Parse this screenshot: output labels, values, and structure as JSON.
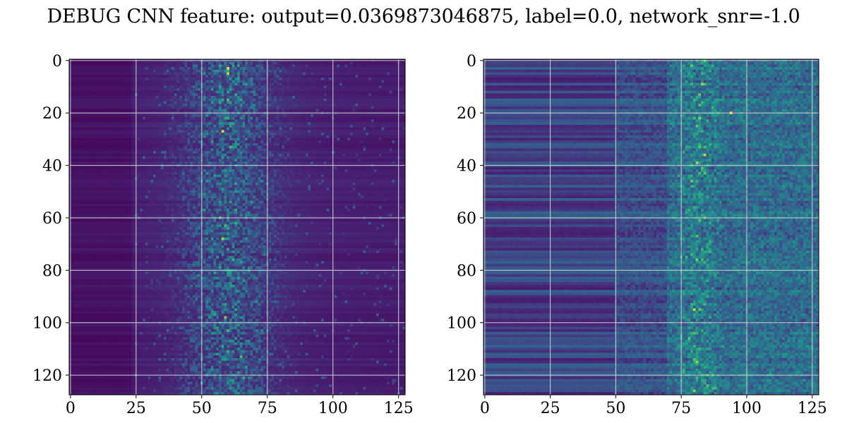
{
  "title": "DEBUG CNN feature: output=0.0369873046875, label=0.0, network_snr=-1.0",
  "chart_data": [
    {
      "type": "heatmap",
      "colormap": "viridis",
      "grid": true,
      "xlim": [
        -0.5,
        127.5
      ],
      "ylim": [
        127.5,
        -0.5
      ],
      "xticks": [
        0,
        25,
        50,
        75,
        100,
        125
      ],
      "yticks": [
        0,
        20,
        40,
        60,
        80,
        100,
        120
      ],
      "xtick_labels": [
        "0",
        "25",
        "50",
        "75",
        "100",
        "125"
      ],
      "ytick_labels": [
        "0",
        "20",
        "40",
        "60",
        "80",
        "100",
        "120"
      ],
      "rows": 128,
      "cols": 128,
      "features": [
        {
          "x": 60,
          "y": 3,
          "value": 1.0
        },
        {
          "x": 60,
          "y": 5,
          "value": 0.9
        },
        {
          "x": 58,
          "y": 27,
          "value": 0.95
        },
        {
          "x": 61,
          "y": 33,
          "value": 0.7
        },
        {
          "x": 59,
          "y": 63,
          "value": 0.7
        },
        {
          "x": 58,
          "y": 68,
          "value": 0.85
        },
        {
          "x": 59,
          "y": 98,
          "value": 0.8
        },
        {
          "x": 65,
          "y": 113,
          "value": 0.7
        }
      ]
    },
    {
      "type": "heatmap",
      "colormap": "viridis",
      "grid": true,
      "xlim": [
        -0.5,
        127.5
      ],
      "ylim": [
        127.5,
        -0.5
      ],
      "xticks": [
        0,
        25,
        50,
        75,
        100,
        125
      ],
      "yticks": [
        0,
        20,
        40,
        60,
        80,
        100,
        120
      ],
      "xtick_labels": [
        "0",
        "25",
        "50",
        "75",
        "100",
        "125"
      ],
      "ytick_labels": [
        "0",
        "20",
        "40",
        "60",
        "80",
        "100",
        "120"
      ],
      "rows": 128,
      "cols": 128,
      "features": [
        {
          "x": 94,
          "y": 20,
          "value": 1.0
        },
        {
          "x": 84,
          "y": 36,
          "value": 0.9
        },
        {
          "x": 81,
          "y": 39,
          "value": 0.85
        },
        {
          "x": 81,
          "y": 76,
          "value": 0.8
        },
        {
          "x": 80,
          "y": 95,
          "value": 0.9
        },
        {
          "x": 81,
          "y": 115,
          "value": 0.85
        },
        {
          "x": 80,
          "y": 126,
          "value": 0.8
        }
      ]
    }
  ]
}
